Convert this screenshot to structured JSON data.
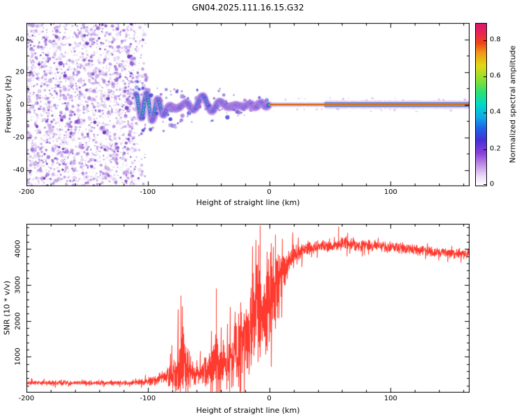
{
  "title": "GN04.2025.111.16.15.G32",
  "chart_data": [
    {
      "type": "heatmap",
      "title": "GN04.2025.111.16.15.G32",
      "xlabel": "Height of straight line (km)",
      "ylabel": "Frequency (Hz)",
      "xlim": [
        -200,
        165
      ],
      "ylim": [
        -50,
        50
      ],
      "xticks": [
        -200,
        -100,
        0,
        100
      ],
      "xtick_minor_step": 20,
      "yticks": [
        -40,
        -20,
        0,
        20,
        40
      ],
      "ytick_minor_step": 10,
      "grid": false,
      "legend": "none",
      "colorbar": {
        "label": "Normalized spectral amplitude",
        "ticks": [
          0,
          0.2,
          0.4,
          0.6,
          0.8
        ],
        "range": [
          0,
          0.89
        ],
        "stops": [
          [
            0,
            "#ffffff"
          ],
          [
            0.05,
            "#efe2f8"
          ],
          [
            0.12,
            "#c59ae6"
          ],
          [
            0.2,
            "#8a40dc"
          ],
          [
            0.28,
            "#4530d8"
          ],
          [
            0.35,
            "#2060e8"
          ],
          [
            0.42,
            "#10a8e8"
          ],
          [
            0.5,
            "#00d8c8"
          ],
          [
            0.58,
            "#30e070"
          ],
          [
            0.66,
            "#90e030"
          ],
          [
            0.74,
            "#e0d818"
          ],
          [
            0.82,
            "#f09818"
          ],
          [
            0.88,
            "#ee4418"
          ],
          [
            0.95,
            "#e8205a"
          ],
          [
            1,
            "#d81870"
          ]
        ]
      },
      "regions": {
        "broadband_noise": {
          "x_range": [
            -200,
            -110
          ],
          "freq_range": [
            -50,
            50
          ],
          "appearance": "random purple speckle over white"
        },
        "oscillating_trace": {
          "x_range": [
            -110,
            0
          ],
          "center_freq": 0,
          "amplitude_start_hz": 8,
          "amplitude_end_hz": 1,
          "appearance": "wavy chirp trace, purple/blue halo with cyan-green core turning yellow-red near 0 km"
        },
        "carrier_line": {
          "x_range": [
            0,
            165
          ],
          "freq_hz": 0,
          "appearance": "narrow horizontal band, red core, yellow/green/blue/purple fringes"
        }
      }
    },
    {
      "type": "line",
      "xlabel": "Height of straight line (km)",
      "ylabel": "SNR (10 * v/v)",
      "xlim": [
        -200,
        165
      ],
      "ylim": [
        0,
        4700
      ],
      "xticks": [
        -200,
        -100,
        0,
        100
      ],
      "xtick_minor_step": 20,
      "yticks": [
        1000,
        2000,
        3000,
        4000
      ],
      "ytick_minor_step": 200,
      "grid": false,
      "series": [
        {
          "name": "SNR",
          "color": "#ff3b30",
          "envelope": [
            {
              "x": -200,
              "mean": 270,
              "noise": 80
            },
            {
              "x": -115,
              "mean": 270,
              "noise": 80
            },
            {
              "x": -104,
              "mean": 300,
              "noise": 110
            },
            {
              "x": -95,
              "mean": 330,
              "noise": 150
            },
            {
              "x": -85,
              "mean": 430,
              "noise": 280
            },
            {
              "x": -76,
              "mean": 650,
              "noise": 900
            },
            {
              "x": -70,
              "mean": 800,
              "noise": 1500
            },
            {
              "x": -64,
              "mean": 530,
              "noise": 450
            },
            {
              "x": -56,
              "mean": 520,
              "noise": 380
            },
            {
              "x": -48,
              "mean": 700,
              "noise": 700
            },
            {
              "x": -43,
              "mean": 900,
              "noise": 1500
            },
            {
              "x": -37,
              "mean": 750,
              "noise": 800
            },
            {
              "x": -31,
              "mean": 950,
              "noise": 950
            },
            {
              "x": -26,
              "mean": 1500,
              "noise": 1800
            },
            {
              "x": -21,
              "mean": 1300,
              "noise": 1500
            },
            {
              "x": -15,
              "mean": 1800,
              "noise": 2100
            },
            {
              "x": -9,
              "mean": 2300,
              "noise": 2300
            },
            {
              "x": -3,
              "mean": 2200,
              "noise": 1900
            },
            {
              "x": 2,
              "mean": 2700,
              "noise": 1700
            },
            {
              "x": 8,
              "mean": 3100,
              "noise": 1100
            },
            {
              "x": 14,
              "mean": 3600,
              "noise": 600
            },
            {
              "x": 22,
              "mean": 3900,
              "noise": 300
            },
            {
              "x": 35,
              "mean": 4050,
              "noise": 210
            },
            {
              "x": 50,
              "mean": 4100,
              "noise": 220
            },
            {
              "x": 65,
              "mean": 4150,
              "noise": 210
            },
            {
              "x": 80,
              "mean": 4100,
              "noise": 190
            },
            {
              "x": 100,
              "mean": 4050,
              "noise": 180
            },
            {
              "x": 120,
              "mean": 3980,
              "noise": 170
            },
            {
              "x": 140,
              "mean": 3900,
              "noise": 170
            },
            {
              "x": 165,
              "mean": 3850,
              "noise": 170
            }
          ],
          "spikes": [
            {
              "x": -73,
              "value": 2700
            },
            {
              "x": -44,
              "value": 2900
            },
            {
              "x": -8,
              "value": 4650
            },
            {
              "x": 5,
              "value": 4400
            },
            {
              "x": 57,
              "value": 4620
            },
            {
              "x": 62,
              "value": 4300
            }
          ]
        }
      ]
    }
  ]
}
